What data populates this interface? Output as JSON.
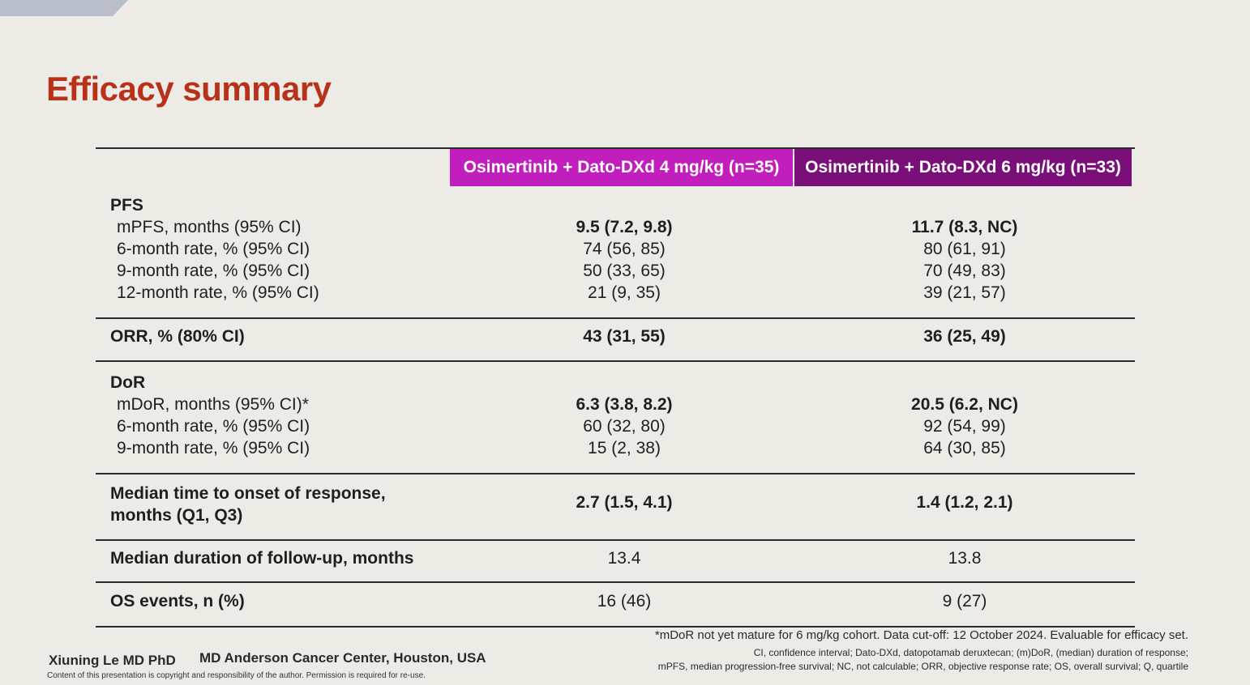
{
  "slide": {
    "title": "Efficacy summary"
  },
  "table": {
    "headers": [
      "Osimertinib + Dato-DXd 4 mg/kg (n=35)",
      "Osimertinib + Dato-DXd 6 mg/kg (n=33)"
    ],
    "header_colors": [
      "#c21dbd",
      "#7a0f79"
    ],
    "pfs": {
      "heading": "PFS",
      "rows": [
        {
          "label": "mPFS, months (95% CI)",
          "v1": "9.5 (7.2, 9.8)",
          "v2": "11.7 (8.3, NC)"
        },
        {
          "label": "6-month rate, % (95% CI)",
          "v1": "74 (56, 85)",
          "v2": "80 (61, 91)"
        },
        {
          "label": "9-month rate, % (95% CI)",
          "v1": "50 (33, 65)",
          "v2": "70 (49, 83)"
        },
        {
          "label": "12-month rate, % (95% CI)",
          "v1": "21 (9, 35)",
          "v2": "39 (21, 57)"
        }
      ]
    },
    "orr": {
      "label": "ORR, % (80% CI)",
      "v1": "43 (31, 55)",
      "v2": "36 (25, 49)"
    },
    "dor": {
      "heading": "DoR",
      "rows": [
        {
          "label": "mDoR, months (95% CI)*",
          "v1": "6.3 (3.8, 8.2)",
          "v2": "20.5 (6.2, NC)"
        },
        {
          "label": "6-month rate, % (95% CI)",
          "v1": "60 (32, 80)",
          "v2": "92 (54, 99)"
        },
        {
          "label": "9-month rate, % (95% CI)",
          "v1": "15 (2, 38)",
          "v2": "64 (30, 85)"
        }
      ]
    },
    "onset": {
      "label_line1": "Median time to onset of response,",
      "label_line2": "months (Q1, Q3)",
      "v1": "2.7 (1.5, 4.1)",
      "v2": "1.4 (1.2, 2.1)"
    },
    "followup": {
      "label": "Median duration of follow-up, months",
      "v1": "13.4",
      "v2": "13.8"
    },
    "os": {
      "label": "OS events, n (%)",
      "v1": "16 (46)",
      "v2": "9 (27)"
    }
  },
  "footer": {
    "author": "Xiuning Le MD PhD",
    "institution": "MD Anderson Cancer Center, Houston, USA",
    "copyright": "Content of this presentation is copyright and responsibility of the author. Permission is required for re-use.",
    "note1": "*mDoR not yet mature for 6 mg/kg cohort. Data cut-off: 12 October 2024. Evaluable for efficacy set.",
    "note2": "CI, confidence interval; Dato-DXd, datopotamab deruxtecan; (m)DoR, (median) duration of response;",
    "note3": "mPFS, median progression-free survival; NC, not calculable; ORR, objective response rate; OS, overall survival; Q, quartile"
  }
}
